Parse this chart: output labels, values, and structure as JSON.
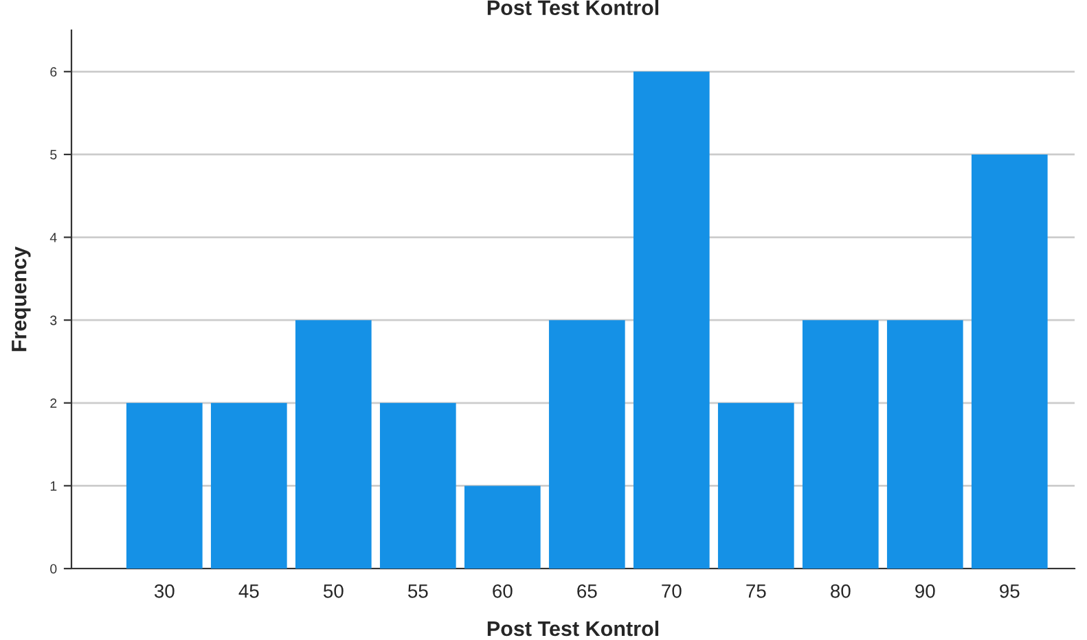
{
  "chart_data": {
    "type": "bar",
    "title": "Post Test Kontrol",
    "xlabel": "Post Test Kontrol",
    "ylabel": "Frequency",
    "categories": [
      "30",
      "45",
      "50",
      "55",
      "60",
      "65",
      "70",
      "75",
      "80",
      "90",
      "95"
    ],
    "values": [
      2,
      2,
      3,
      2,
      1,
      3,
      6,
      2,
      3,
      3,
      5
    ],
    "color": "#1591e6",
    "ylim": [
      0,
      6.5
    ],
    "yticks": [
      0,
      1,
      2,
      3,
      4,
      5,
      6
    ],
    "grid": "y"
  }
}
